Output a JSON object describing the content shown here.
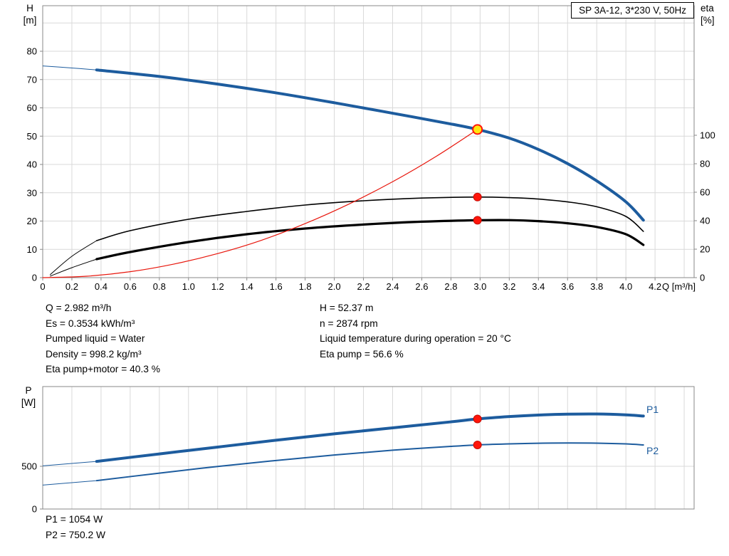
{
  "title_box": "SP 3A-12, 3*230 V, 50Hz",
  "axis_labels": {
    "h_top": "H",
    "h_unit": "[m]",
    "eta_top": "eta",
    "eta_unit": "[%]",
    "q": "Q [m³/h]",
    "p_top": "P",
    "p_unit": "[W]"
  },
  "series_labels": {
    "p1": "P1",
    "p2": "P2"
  },
  "info": {
    "left": [
      "Q = 2.982 m³/h",
      "Es = 0.3534 kWh/m³",
      "Pumped liquid = Water",
      "Density = 998.2 kg/m³",
      "Eta pump+motor = 40.3 %"
    ],
    "right": [
      "H = 52.37 m",
      "n = 2874 rpm",
      "Liquid temperature during operation = 20 °C",
      "Eta pump = 56.6 %"
    ]
  },
  "power_info": [
    "P1 = 1054 W",
    "P2 = 750.2 W"
  ],
  "colors": {
    "grid": "#d9d9d9",
    "axis": "#8a8a8a",
    "curve_blue": "#1d5c9e",
    "curve_black": "#000000",
    "system_red": "#e8160c",
    "dot_red": "#ff150a",
    "dot_yellow": "#ffe60e"
  },
  "chart_data": [
    {
      "id": "hq",
      "type": "line",
      "title": "SP 3A-12, 3*230 V, 50Hz",
      "xlabel": "Q [m³/h]",
      "ylabel_left": "H [m]",
      "ylabel_right": "eta [%]",
      "xlim": [
        0,
        4.468
      ],
      "ylim_left": [
        0,
        96.1
      ],
      "ylim_right": [
        0,
        191
      ],
      "x_ticks": [
        "0",
        "0.2",
        "0.4",
        "0.6",
        "0.8",
        "1.0",
        "1.2",
        "1.4",
        "1.6",
        "1.8",
        "2.0",
        "2.2",
        "2.4",
        "2.6",
        "2.8",
        "3.0",
        "3.2",
        "3.4",
        "3.6",
        "3.8",
        "4.0",
        "4.2"
      ],
      "y_ticks_left": [
        "0",
        "10",
        "20",
        "30",
        "40",
        "50",
        "60",
        "70",
        "80"
      ],
      "y_ticks_right": [
        "0",
        "20",
        "40",
        "60",
        "80",
        "100"
      ],
      "grid": {
        "x_step": 0.2,
        "x_max": 4.4,
        "y_left_step": 10,
        "y_left_max": 90
      },
      "series": [
        {
          "name": "eta-pump-curve",
          "axis": "right",
          "color": "#000000",
          "width": 1.6,
          "lead": [
            [
              0.05,
              2
            ],
            [
              0.2,
              15
            ],
            [
              0.37,
              26
            ]
          ],
          "points": [
            [
              0.37,
              26
            ],
            [
              0.6,
              33
            ],
            [
              1.0,
              41
            ],
            [
              1.4,
              46.5
            ],
            [
              1.8,
              51
            ],
            [
              2.2,
              54
            ],
            [
              2.6,
              55.9
            ],
            [
              2.982,
              56.6
            ],
            [
              3.2,
              56.2
            ],
            [
              3.4,
              55.2
            ],
            [
              3.6,
              53.2
            ],
            [
              3.8,
              49.8
            ],
            [
              4.0,
              43
            ],
            [
              4.12,
              32.5
            ]
          ]
        },
        {
          "name": "eta-pump-motor-curve",
          "axis": "right",
          "color": "#000000",
          "width": 3.2,
          "lead": [
            [
              0.05,
              1
            ],
            [
              0.2,
              7
            ],
            [
              0.37,
              13
            ]
          ],
          "points": [
            [
              0.37,
              13
            ],
            [
              0.6,
              18
            ],
            [
              1.0,
              25
            ],
            [
              1.4,
              30.5
            ],
            [
              1.8,
              34.5
            ],
            [
              2.2,
              37.3
            ],
            [
              2.6,
              39.3
            ],
            [
              2.982,
              40.3
            ],
            [
              3.2,
              40.4
            ],
            [
              3.4,
              39.7
            ],
            [
              3.6,
              38.2
            ],
            [
              3.8,
              35.6
            ],
            [
              4.0,
              30.5
            ],
            [
              4.12,
              23
            ]
          ]
        },
        {
          "name": "system-curve",
          "axis": "left",
          "color": "#e8160c",
          "width": 1.2,
          "points": [
            [
              0,
              0
            ],
            [
              0.3,
              0.5
            ],
            [
              0.6,
              2.1
            ],
            [
              0.9,
              4.8
            ],
            [
              1.2,
              8.5
            ],
            [
              1.5,
              13.2
            ],
            [
              1.8,
              19.1
            ],
            [
              2.1,
              26
            ],
            [
              2.4,
              33.9
            ],
            [
              2.7,
              42.9
            ],
            [
              2.982,
              52.37
            ]
          ]
        },
        {
          "name": "hq-curve",
          "axis": "left",
          "color": "#1d5c9e",
          "width": 4,
          "lead": [
            [
              0,
              74.8
            ],
            [
              0.2,
              74.1
            ],
            [
              0.37,
              73.4
            ]
          ],
          "points": [
            [
              0.37,
              73.4
            ],
            [
              0.8,
              71.1
            ],
            [
              1.2,
              68.4
            ],
            [
              1.6,
              65.3
            ],
            [
              2.0,
              61.8
            ],
            [
              2.4,
              58.1
            ],
            [
              2.8,
              54.3
            ],
            [
              2.982,
              52.37
            ],
            [
              3.2,
              49.3
            ],
            [
              3.4,
              45.3
            ],
            [
              3.6,
              40.3
            ],
            [
              3.8,
              34.2
            ],
            [
              4.0,
              26.8
            ],
            [
              4.12,
              20.3
            ]
          ]
        }
      ],
      "markers": [
        {
          "name": "duty-point",
          "x": 2.982,
          "axis": "left",
          "y": 52.37,
          "r": 6.5,
          "fill": "#ffe60e",
          "stroke": "#ff150a",
          "stroke_width": 2
        },
        {
          "name": "eta-pump-point",
          "x": 2.982,
          "axis": "right",
          "y": 56.6,
          "r": 5.5,
          "fill": "#ff150a",
          "stroke": "#c40d05",
          "stroke_width": 1
        },
        {
          "name": "eta-pump-motor-point",
          "x": 2.982,
          "axis": "right",
          "y": 40.3,
          "r": 5.5,
          "fill": "#ff150a",
          "stroke": "#c40d05",
          "stroke_width": 1
        }
      ]
    },
    {
      "id": "power",
      "type": "line",
      "xlabel": "",
      "ylabel_left": "P [W]",
      "xlim": [
        0,
        4.468
      ],
      "ylim_left": [
        0,
        1433
      ],
      "x_ticks": [],
      "y_ticks_left": [
        "0",
        "500"
      ],
      "grid": {
        "x_step": 0.2,
        "x_max": 4.4,
        "y_lines": [
          500
        ]
      },
      "series": [
        {
          "name": "p1-curve",
          "axis": "left",
          "color": "#1d5c9e",
          "width": 4,
          "label": "P1",
          "lead": [
            [
              0,
              505
            ],
            [
              0.37,
              557
            ]
          ],
          "points": [
            [
              0.37,
              557
            ],
            [
              0.8,
              645
            ],
            [
              1.2,
              725
            ],
            [
              1.6,
              805
            ],
            [
              2.0,
              880
            ],
            [
              2.4,
              950
            ],
            [
              2.8,
              1020
            ],
            [
              2.982,
              1054
            ],
            [
              3.2,
              1082
            ],
            [
              3.4,
              1100
            ],
            [
              3.6,
              1110
            ],
            [
              3.8,
              1112
            ],
            [
              4.0,
              1102
            ],
            [
              4.12,
              1088
            ]
          ]
        },
        {
          "name": "p2-curve",
          "axis": "left",
          "color": "#1d5c9e",
          "width": 2,
          "label": "P2",
          "lead": [
            [
              0,
              280
            ],
            [
              0.37,
              332
            ]
          ],
          "points": [
            [
              0.37,
              332
            ],
            [
              0.8,
              420
            ],
            [
              1.2,
              498
            ],
            [
              1.6,
              568
            ],
            [
              2.0,
              632
            ],
            [
              2.4,
              688
            ],
            [
              2.8,
              733
            ],
            [
              2.982,
              750.2
            ],
            [
              3.2,
              762
            ],
            [
              3.4,
              770
            ],
            [
              3.6,
              773
            ],
            [
              3.8,
              771
            ],
            [
              4.0,
              762
            ],
            [
              4.12,
              750
            ]
          ]
        }
      ],
      "markers": [
        {
          "name": "p1-point",
          "x": 2.982,
          "axis": "left",
          "y": 1054,
          "r": 5.5,
          "fill": "#ff150a",
          "stroke": "#c40d05",
          "stroke_width": 1
        },
        {
          "name": "p2-point",
          "x": 2.982,
          "axis": "left",
          "y": 750.2,
          "r": 5.5,
          "fill": "#ff150a",
          "stroke": "#c40d05",
          "stroke_width": 1
        }
      ]
    }
  ]
}
